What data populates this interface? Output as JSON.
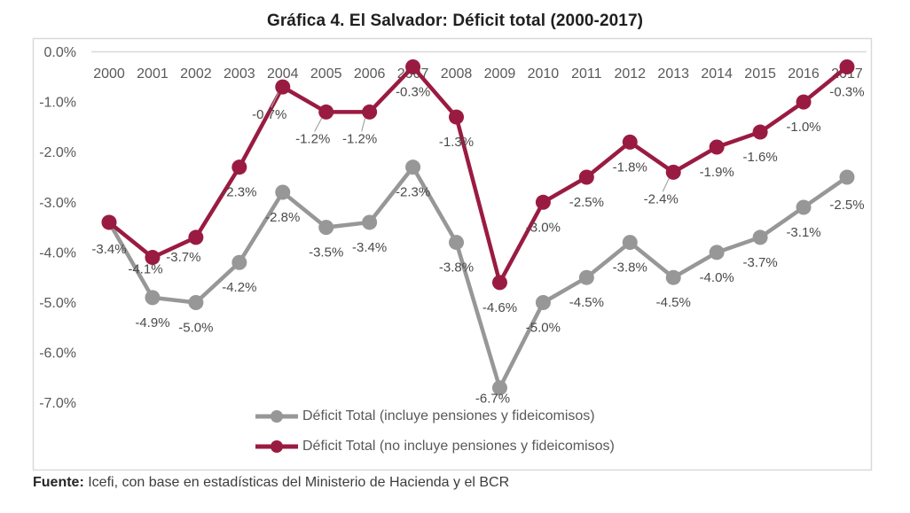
{
  "page": {
    "title": "Gráfica 4. El Salvador: Déficit total (2000-2017)",
    "source": {
      "label": "Fuente:",
      "text": " Icefi, con base en estadísticas del Ministerio de Hacienda y el BCR"
    }
  },
  "colors": {
    "axis_text": "#595959",
    "data_label_text": "#4a4a4a",
    "gridline": "#d9d9d9",
    "plot_border": "#d9d9d9",
    "leader_line": "#a6a6a6",
    "title_text": "#1f1f1f"
  },
  "chart_data": {
    "type": "line",
    "title": "Gráfica 4. El Salvador: Déficit total (2000-2017)",
    "categories": [
      2000,
      2001,
      2002,
      2003,
      2004,
      2005,
      2006,
      2007,
      2008,
      2009,
      2010,
      2011,
      2012,
      2013,
      2014,
      2015,
      2016,
      2017
    ],
    "xlabel": "",
    "ylabel": "",
    "ylim": [
      -7.5,
      0
    ],
    "y_ticks": [
      "0.0%",
      "-1.0%",
      "-2.0%",
      "-3.0%",
      "-4.0%",
      "-5.0%",
      "-6.0%",
      "-7.0%"
    ],
    "grid": "zero-line-only",
    "legend_position": "bottom-center",
    "marker_style": "filled-circle",
    "series": [
      {
        "name": "Déficit Total (incluye pensiones y fideicomisos)",
        "color": "#979797",
        "values": [
          -3.4,
          -4.9,
          -5.0,
          -4.2,
          -2.8,
          -3.5,
          -3.4,
          -2.3,
          -3.8,
          -6.7,
          -5.0,
          -4.5,
          -3.8,
          -4.5,
          -4.0,
          -3.7,
          -3.1,
          -2.5
        ],
        "labels": [
          null,
          "-4.9%",
          "-5.0%",
          "-4.2%",
          "-2.8%",
          "-3.5%",
          "-3.4%",
          "-2.3%",
          "-3.8%",
          "-6.7%",
          "-5.0%",
          "-4.5%",
          "-3.8%",
          "-4.5%",
          "-4.0%",
          "-3.7%",
          "-3.1%",
          "-2.5%"
        ]
      },
      {
        "name": "Déficit Total (no incluye pensiones y fideicomisos)",
        "color": "#9a1b41",
        "values": [
          -3.4,
          -4.1,
          -3.7,
          -2.3,
          -0.7,
          -1.2,
          -1.2,
          -0.3,
          -1.3,
          -4.6,
          -3.0,
          -2.5,
          -1.8,
          -2.4,
          -1.9,
          -1.6,
          -1.0,
          -0.3
        ],
        "labels": [
          "-3.4%",
          "-4.1%",
          "-3.7%",
          "-2.3%",
          "-0.7%",
          "-1.2%",
          "-1.2%",
          "-0.3%",
          "-1.3%",
          "-4.6%",
          "-3.0%",
          "-2.5%",
          "-1.8%",
          "-2.4%",
          "-1.9%",
          "-1.6%",
          "-1.0%",
          "-0.3%"
        ]
      }
    ]
  }
}
